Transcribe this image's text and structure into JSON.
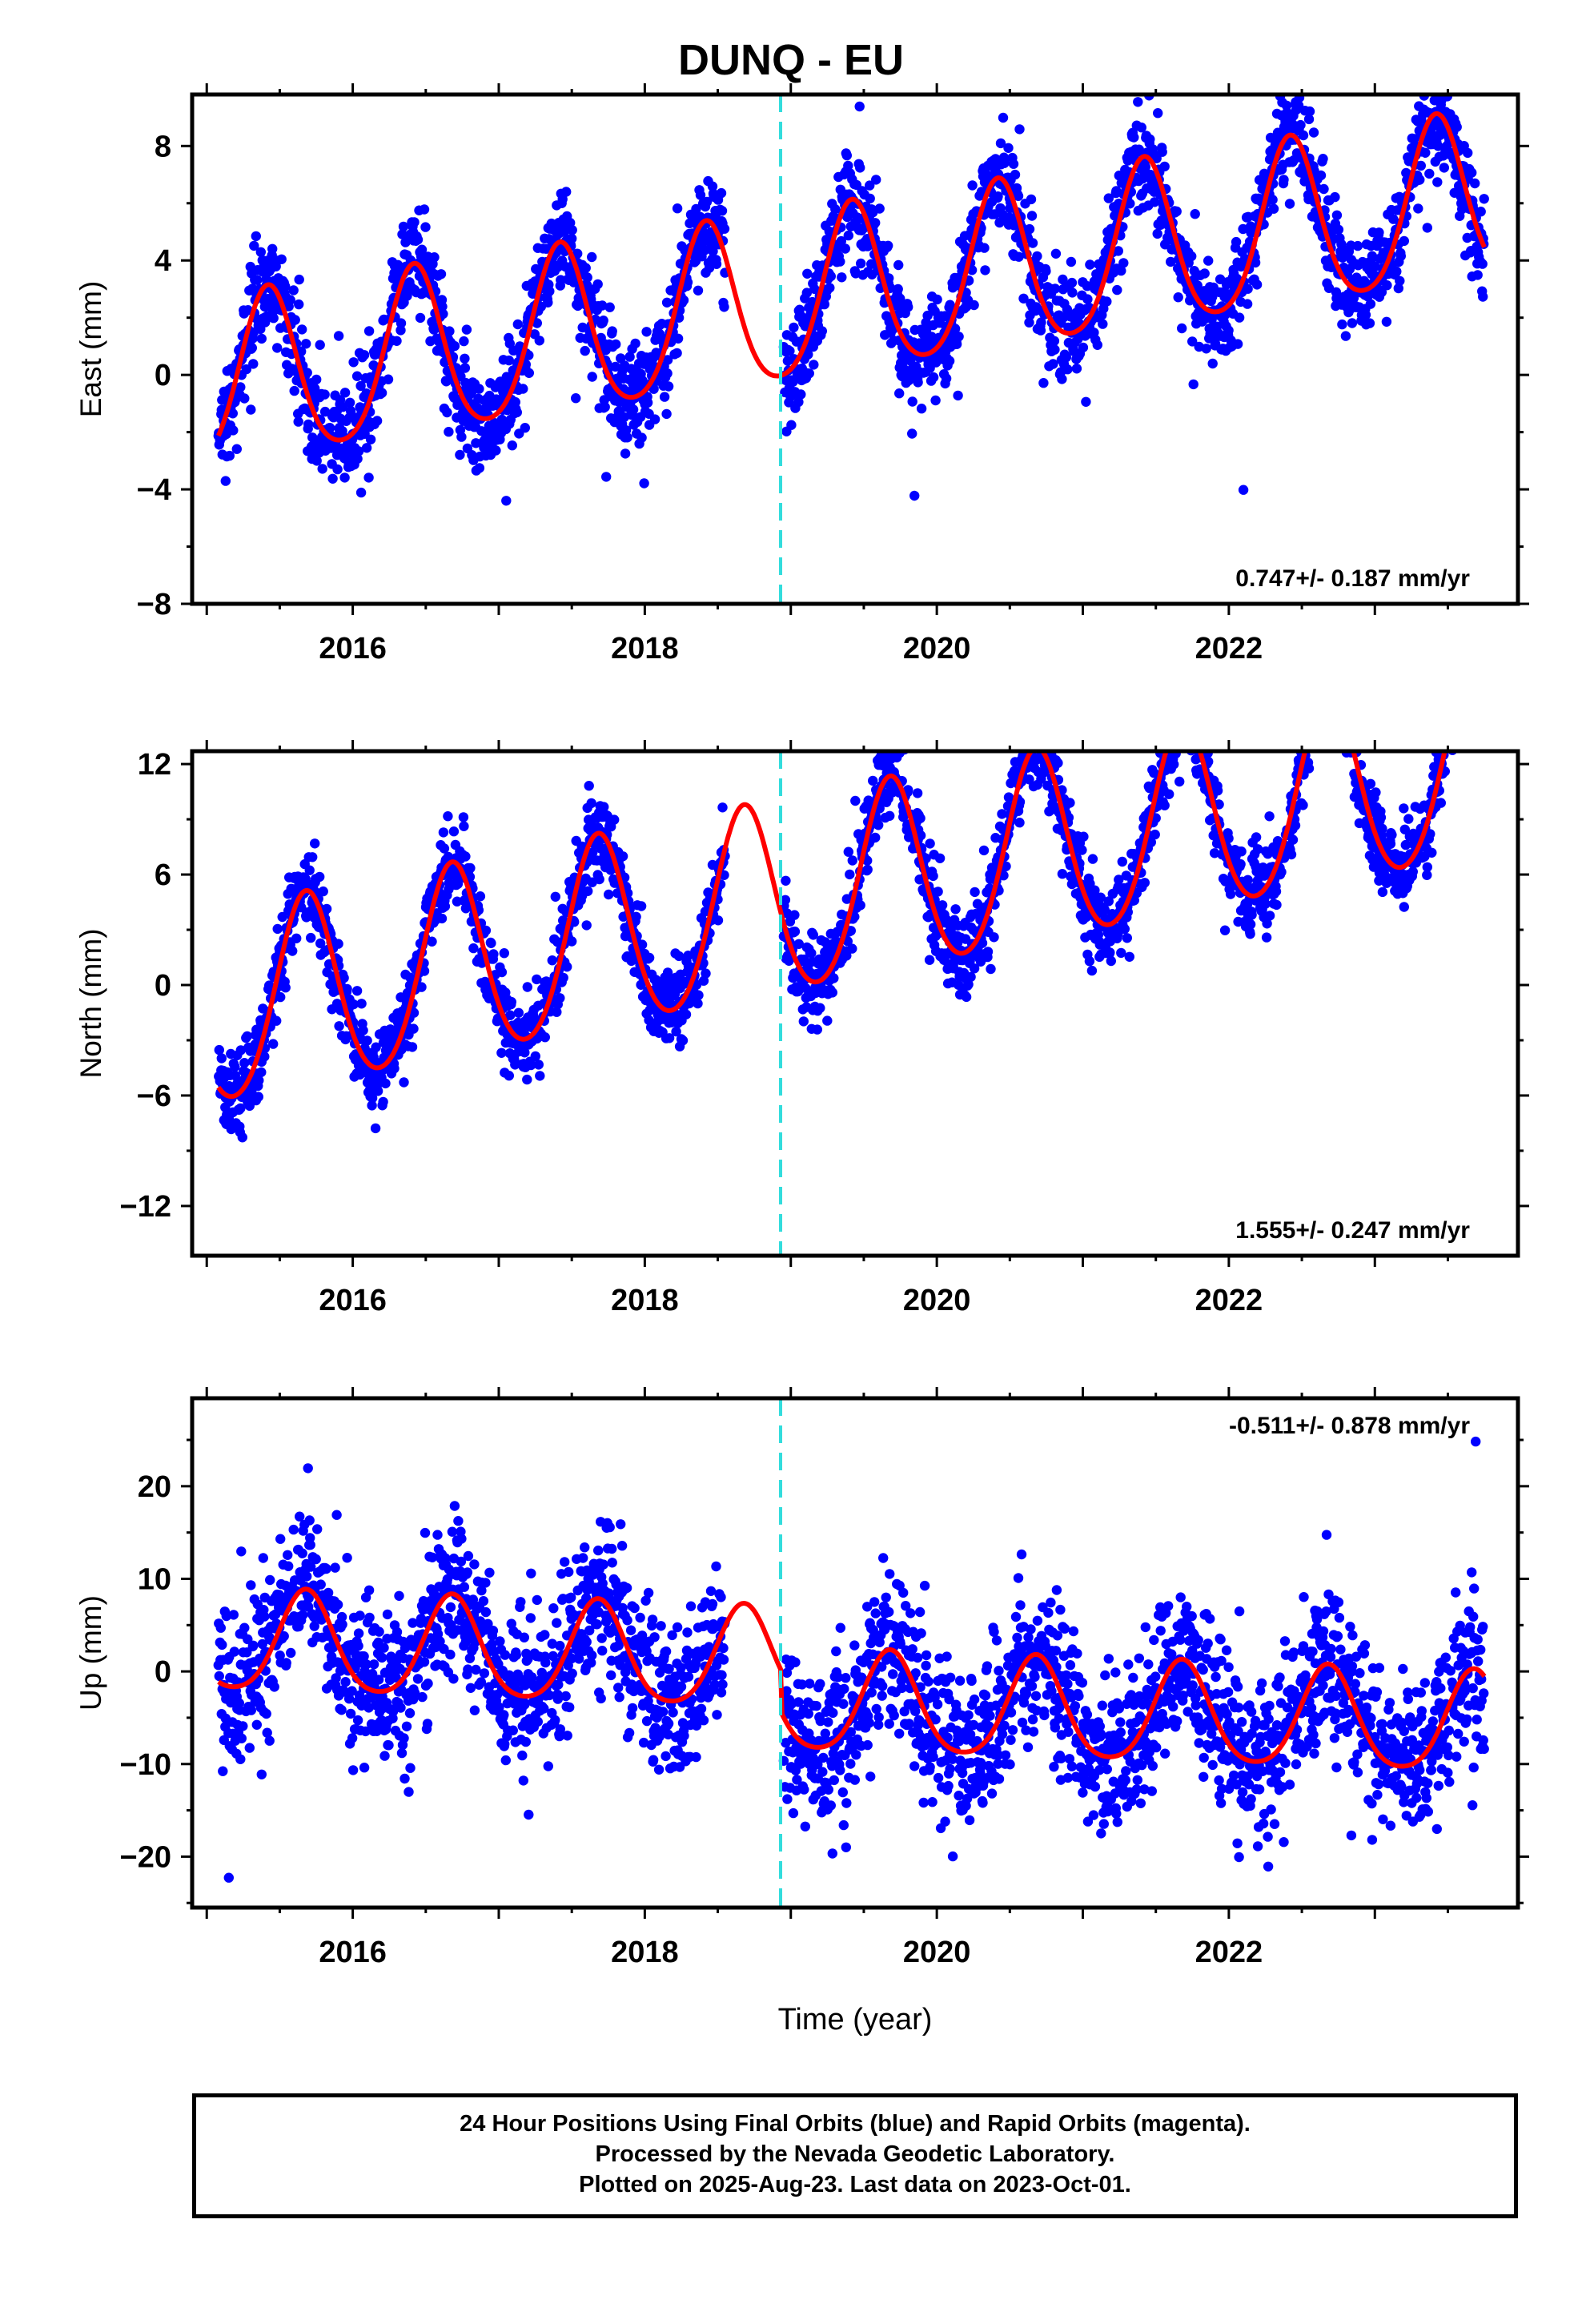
{
  "title": "DUNQ - EU",
  "colors": {
    "points": "#0000ff",
    "fit": "#ff0000",
    "break_line": "#33dddd",
    "frame": "#000000"
  },
  "xlabel": "Time (year)",
  "footer": {
    "line1": "24 Hour Positions Using Final Orbits (blue) and Rapid Orbits (magenta).",
    "line2": "Processed by the Nevada Geodetic Laboratory.",
    "line3": "Plotted on 2025-Aug-23. Last data on 2023-Oct-01."
  },
  "chart_data": [
    {
      "type": "scatter",
      "component": "East",
      "ylabel": "East (mm)",
      "xlim": [
        2014.9,
        2023.98
      ],
      "ylim": [
        -8,
        9.8
      ],
      "yticks": [
        -8,
        -4,
        0,
        4,
        8
      ],
      "xticks": [
        2016,
        2018,
        2020,
        2022
      ],
      "rate_label": "0.747+/- 0.187 mm/yr",
      "rate_position": "bottom-right",
      "break_epoch": 2018.93,
      "data_range": [
        2015.08,
        2023.75
      ],
      "gap": [
        2018.55,
        2018.95
      ],
      "fit": {
        "offset": -0.4,
        "rate": 0.747,
        "annual_amplitude": 2.9,
        "annual_peak": 2015.42,
        "semiannual_amplitude": 0.4,
        "step_at_break": 0.0
      },
      "scatter_sigma": 0.9
    },
    {
      "type": "scatter",
      "component": "North",
      "ylabel": "North (mm)",
      "xlim": [
        2014.9,
        2023.98
      ],
      "ylim": [
        -14.7,
        12.7
      ],
      "yticks": [
        -12,
        -6,
        0,
        6,
        12
      ],
      "xticks": [
        2016,
        2018,
        2020,
        2022
      ],
      "rate_label": "1.555+/- 0.247 mm/yr",
      "rate_position": "bottom-right",
      "break_epoch": 2018.93,
      "data_range": [
        2015.08,
        2023.75
      ],
      "gap": [
        2018.55,
        2018.95
      ],
      "fit": {
        "offset": -1.5,
        "rate": 1.555,
        "annual_amplitude": 5.2,
        "annual_peak": 2015.68,
        "semiannual_amplitude": 0.5,
        "step_at_break": 0.0
      },
      "scatter_sigma": 1.1
    },
    {
      "type": "scatter",
      "component": "Up",
      "ylabel": "Up (mm)",
      "xlim": [
        2014.9,
        2023.98
      ],
      "ylim": [
        -25.5,
        29.5
      ],
      "yticks": [
        -20,
        -10,
        0,
        10,
        20
      ],
      "xticks": [
        2016,
        2018,
        2020,
        2022
      ],
      "rate_label": "-0.511+/- 0.878 mm/yr",
      "rate_position": "top-right",
      "break_epoch": 2018.93,
      "data_range": [
        2015.08,
        2023.75
      ],
      "gap": [
        2018.55,
        2018.95
      ],
      "fit": {
        "offset": 3.0,
        "rate": -0.511,
        "annual_amplitude": 5.4,
        "annual_peak": 2015.68,
        "semiannual_amplitude": 0.8,
        "step_at_break": -4.5
      },
      "scatter_sigma": 4.2
    }
  ]
}
